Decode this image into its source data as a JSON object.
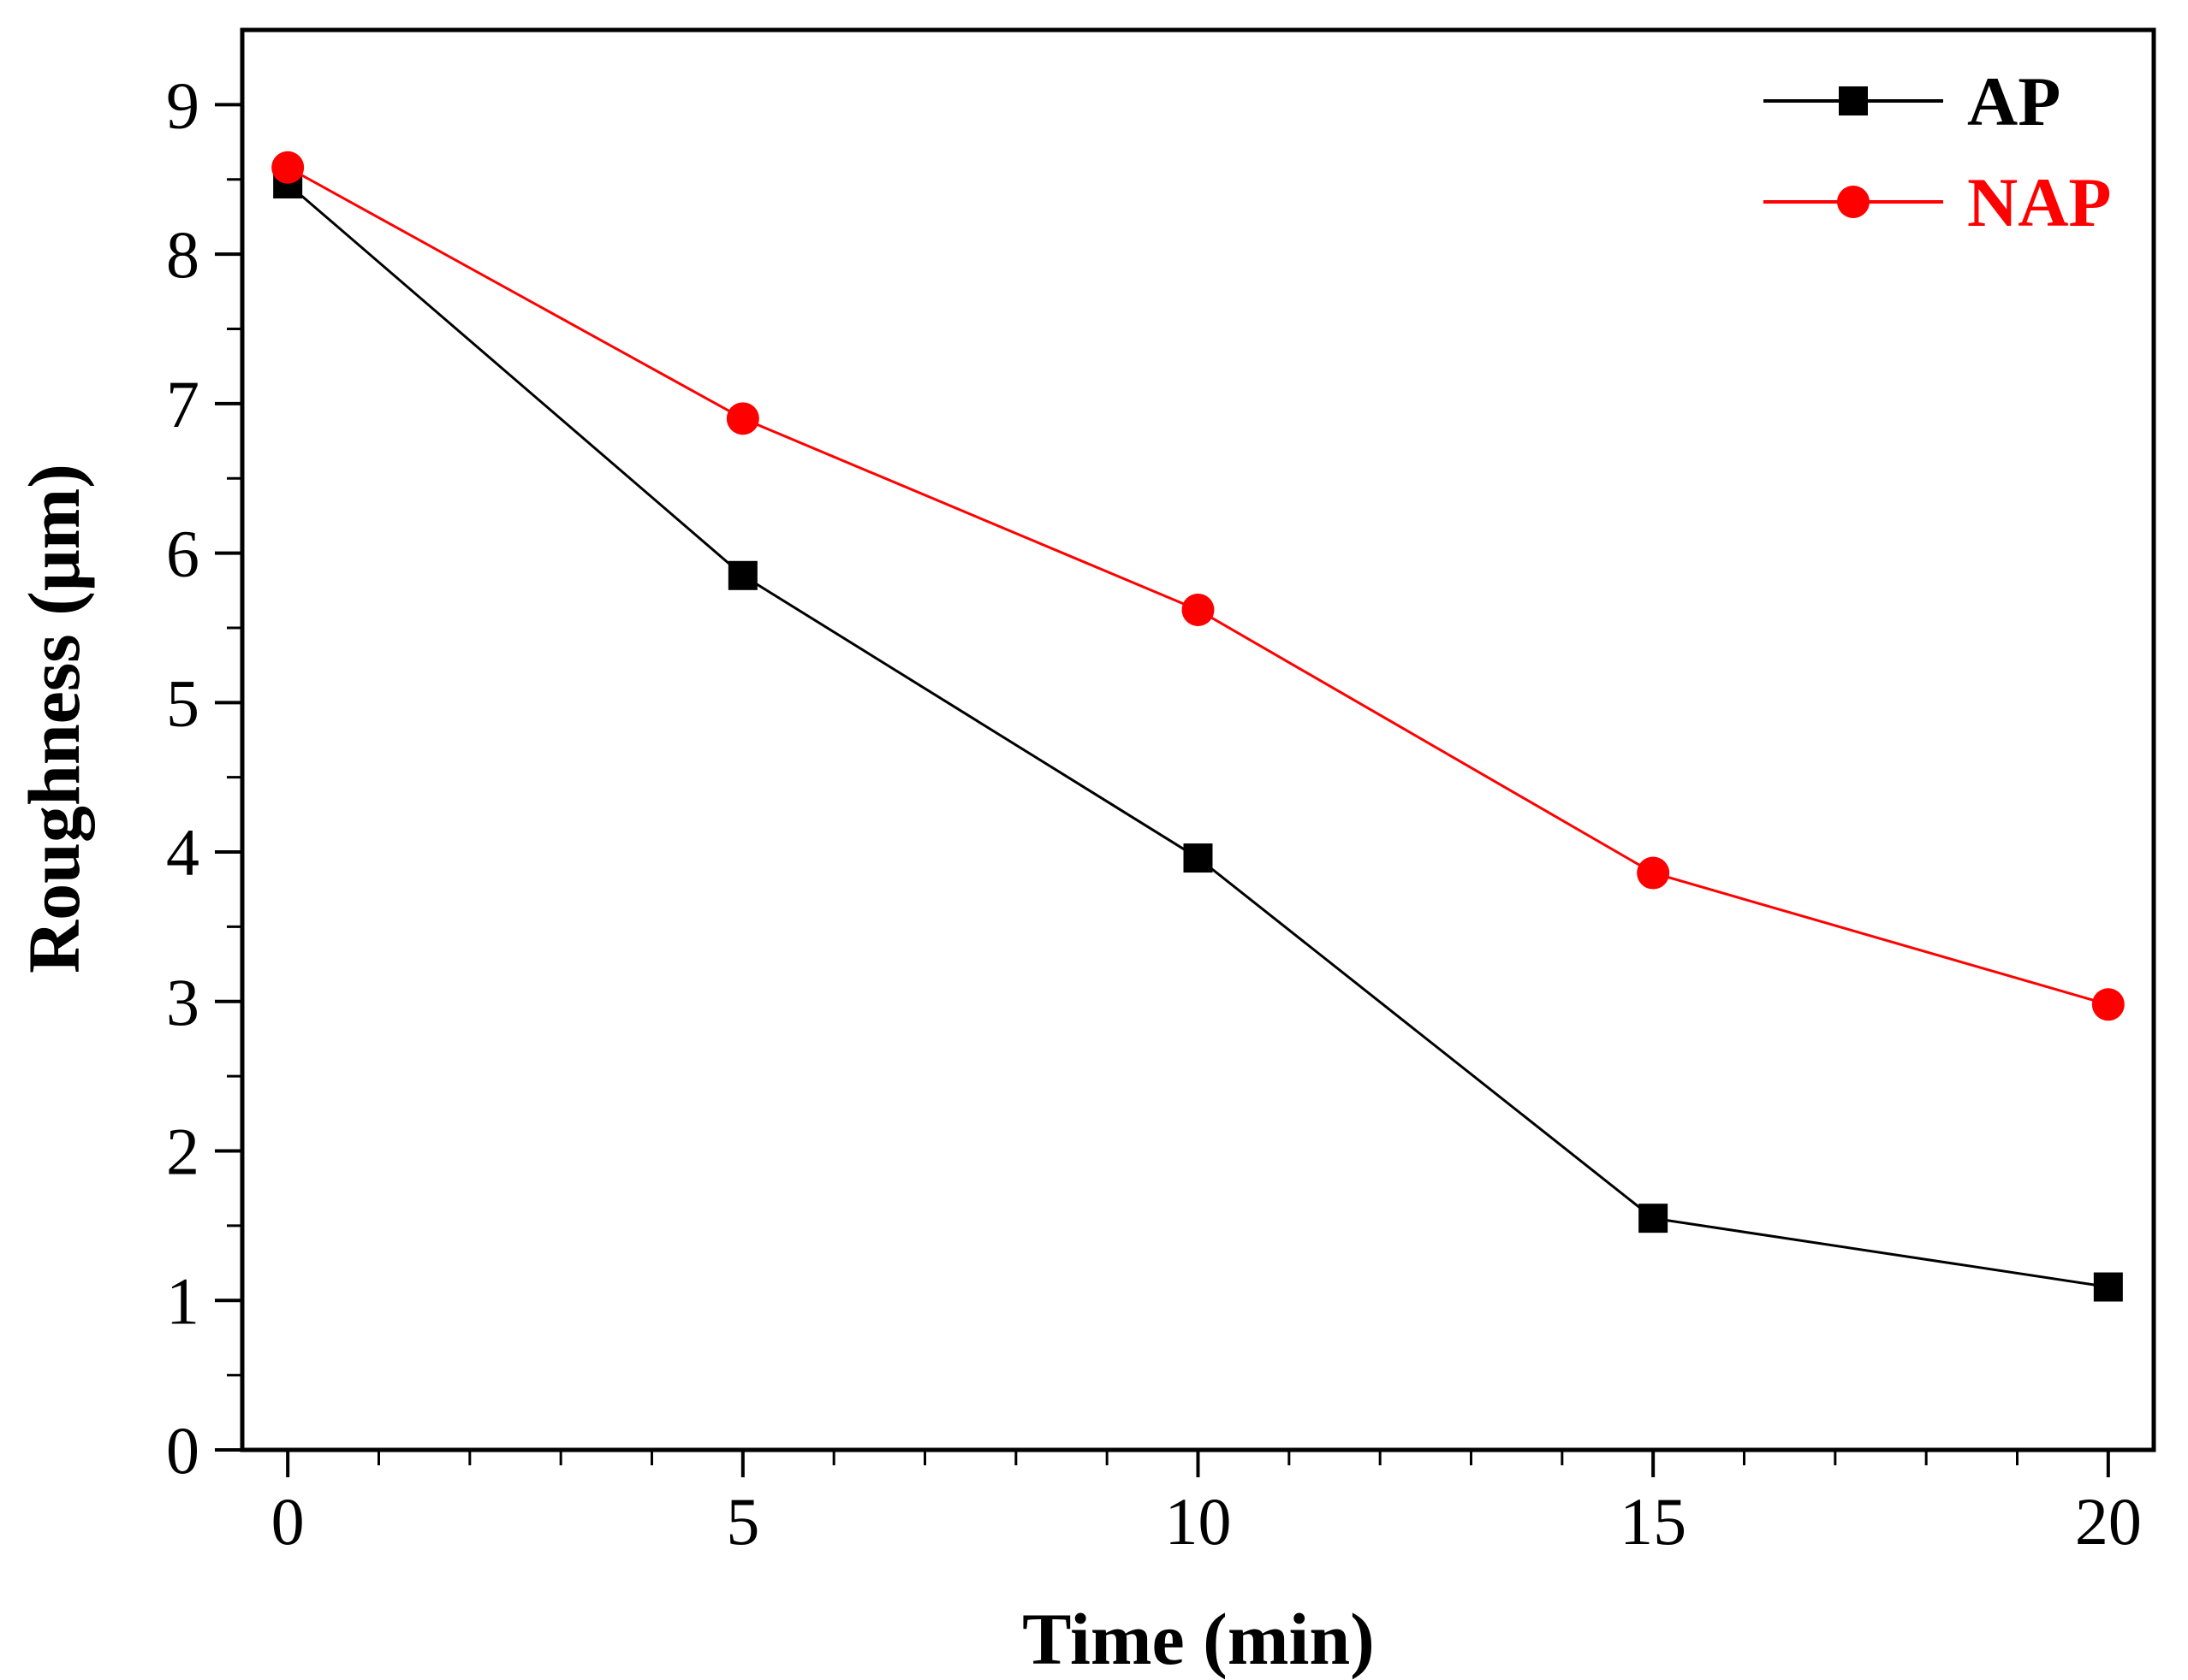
{
  "chart_data": {
    "type": "line",
    "title": "",
    "xlabel": "Time (min)",
    "ylabel": "Roughness (μm)",
    "x": [
      0,
      5,
      10,
      15,
      20
    ],
    "xlim": [
      -0.5,
      20.5
    ],
    "ylim": [
      0,
      9.5
    ],
    "xticks": [
      "0",
      "5",
      "10",
      "15",
      "20"
    ],
    "yticks": [
      "0",
      "1",
      "2",
      "3",
      "4",
      "5",
      "6",
      "7",
      "8",
      "9"
    ],
    "grid": false,
    "legend_position": "top-right",
    "series": [
      {
        "name": "AP",
        "color": "#000000",
        "marker": "square",
        "values": [
          8.47,
          5.85,
          3.96,
          1.55,
          1.09
        ]
      },
      {
        "name": "NAP",
        "color": "#ff0000",
        "marker": "circle",
        "values": [
          8.58,
          6.9,
          5.62,
          3.86,
          2.98
        ]
      }
    ]
  }
}
